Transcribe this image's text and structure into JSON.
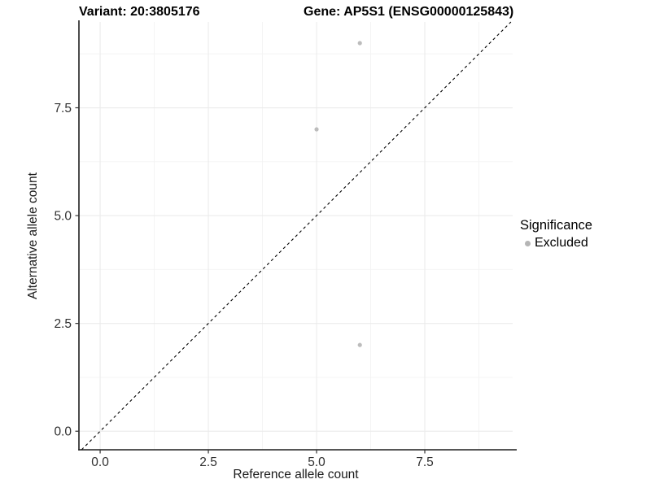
{
  "chart_data": {
    "type": "scatter",
    "title_left": "Variant: 20:3805176",
    "title_right": "Gene: AP5S1 (ENSG00000125843)",
    "xlabel": "Reference allele count",
    "ylabel": "Alternative allele count",
    "xlim": [
      -0.49,
      9.53
    ],
    "ylim": [
      -0.43,
      9.49
    ],
    "x_major_ticks": [
      0.0,
      2.5,
      5.0,
      7.5
    ],
    "y_major_ticks": [
      0.0,
      2.5,
      5.0,
      7.5
    ],
    "x_minor_ticks": [
      1.25,
      3.75,
      6.25,
      8.75
    ],
    "y_minor_ticks": [
      1.25,
      3.75,
      6.25,
      8.75
    ],
    "grid": true,
    "series": [
      {
        "name": "Excluded",
        "color": "#bcbcbc",
        "points": [
          {
            "x": 6,
            "y": 9
          },
          {
            "x": 5,
            "y": 7
          },
          {
            "x": 6,
            "y": 2
          }
        ]
      }
    ],
    "reference_line": {
      "description": "identity line y = x",
      "style": "dashed",
      "color": "#000000"
    },
    "legend": {
      "title": "Significance",
      "position": "right",
      "items": [
        {
          "label": "Excluded",
          "color": "#b5b5b5",
          "marker": "circle"
        }
      ]
    }
  },
  "colors": {
    "background": "#ffffff",
    "grid_major": "#ebebeb",
    "grid_minor": "#f3f3f3",
    "axis_line": "#1f1f1f",
    "tick_mark": "#333333",
    "tick_label": "#303030",
    "point": "#bcbcbc"
  }
}
